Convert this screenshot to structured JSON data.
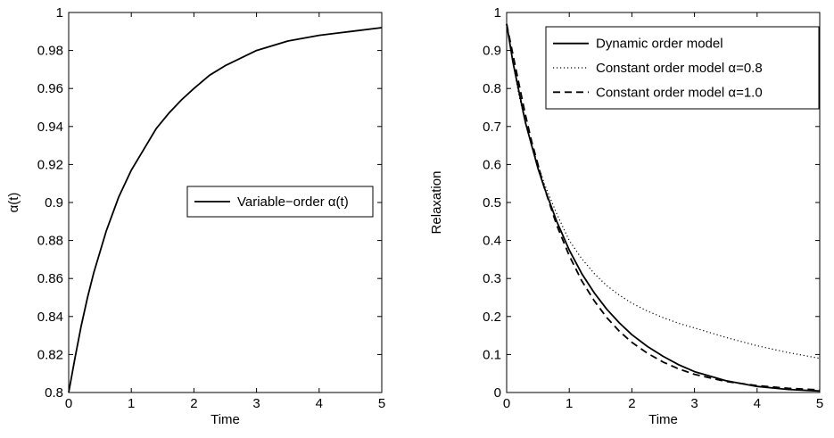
{
  "chart_data": [
    {
      "type": "line",
      "xlabel": "Time",
      "ylabel": "α(t)",
      "xlim": [
        0,
        5
      ],
      "ylim": [
        0.8,
        1
      ],
      "xticks": [
        "0",
        "1",
        "2",
        "3",
        "4",
        "5"
      ],
      "yticks": [
        "0.8",
        "0.82",
        "0.84",
        "0.86",
        "0.88",
        "0.9",
        "0.92",
        "0.94",
        "0.96",
        "0.98",
        "1"
      ],
      "grid": false,
      "legend_position": "center-right",
      "series": [
        {
          "name": "Variable−order α(t)",
          "style": "solid",
          "x": [
            0,
            0.1,
            0.2,
            0.3,
            0.4,
            0.5,
            0.6,
            0.8,
            1.0,
            1.2,
            1.4,
            1.6,
            1.8,
            2.0,
            2.25,
            2.5,
            2.75,
            3.0,
            3.5,
            4.0,
            4.5,
            5.0
          ],
          "y": [
            0.8,
            0.818,
            0.835,
            0.85,
            0.863,
            0.874,
            0.885,
            0.903,
            0.917,
            0.928,
            0.939,
            0.947,
            0.954,
            0.96,
            0.967,
            0.972,
            0.976,
            0.98,
            0.985,
            0.988,
            0.99,
            0.992
          ]
        }
      ]
    },
    {
      "type": "line",
      "xlabel": "Time",
      "ylabel": "Relaxation",
      "xlim": [
        0,
        5
      ],
      "ylim": [
        0,
        1
      ],
      "xticks": [
        "0",
        "1",
        "2",
        "3",
        "4",
        "5"
      ],
      "yticks": [
        "0",
        "0.1",
        "0.2",
        "0.3",
        "0.4",
        "0.5",
        "0.6",
        "0.7",
        "0.8",
        "0.9",
        "1"
      ],
      "grid": false,
      "legend_position": "top-right",
      "series": [
        {
          "name": "Dynamic order model",
          "style": "solid",
          "x": [
            0,
            0.1,
            0.2,
            0.3,
            0.4,
            0.5,
            0.6,
            0.8,
            1.0,
            1.2,
            1.4,
            1.6,
            1.8,
            2.0,
            2.25,
            2.5,
            2.75,
            3.0,
            3.5,
            4.0,
            4.5,
            5.0
          ],
          "y": [
            0.97,
            0.87,
            0.79,
            0.71,
            0.65,
            0.59,
            0.54,
            0.45,
            0.375,
            0.313,
            0.262,
            0.219,
            0.183,
            0.152,
            0.121,
            0.095,
            0.073,
            0.055,
            0.031,
            0.016,
            0.008,
            0.004
          ]
        },
        {
          "name": "Constant order model α=0.8",
          "style": "dotted",
          "x": [
            0,
            0.1,
            0.2,
            0.3,
            0.4,
            0.5,
            0.6,
            0.8,
            1.0,
            1.2,
            1.4,
            1.6,
            1.8,
            2.0,
            2.25,
            2.5,
            2.75,
            3.0,
            3.5,
            4.0,
            4.5,
            5.0
          ],
          "y": [
            0.97,
            0.87,
            0.78,
            0.71,
            0.65,
            0.6,
            0.55,
            0.47,
            0.4,
            0.352,
            0.313,
            0.281,
            0.256,
            0.235,
            0.214,
            0.197,
            0.182,
            0.17,
            0.145,
            0.123,
            0.105,
            0.09
          ]
        },
        {
          "name": "Constant order model α=1.0",
          "style": "dashed",
          "x": [
            0,
            0.1,
            0.2,
            0.3,
            0.4,
            0.5,
            0.6,
            0.8,
            1.0,
            1.2,
            1.4,
            1.6,
            1.8,
            2.0,
            2.25,
            2.5,
            2.75,
            3.0,
            3.5,
            4.0,
            4.5,
            5.0
          ],
          "y": [
            0.97,
            0.89,
            0.81,
            0.73,
            0.66,
            0.6,
            0.54,
            0.44,
            0.36,
            0.294,
            0.241,
            0.197,
            0.161,
            0.132,
            0.103,
            0.08,
            0.062,
            0.048,
            0.029,
            0.018,
            0.011,
            0.007
          ]
        }
      ]
    }
  ]
}
